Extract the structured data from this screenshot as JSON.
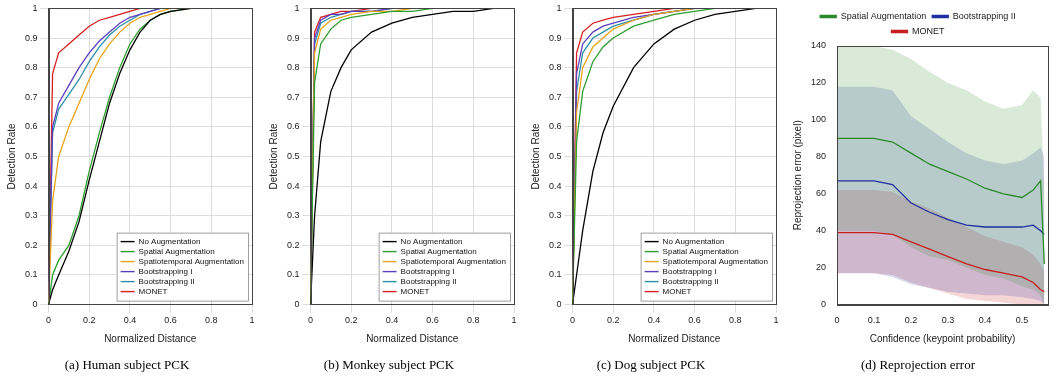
{
  "chart_data": [
    {
      "type": "line",
      "title": "(a) Human subject PCK",
      "x_label": "Normalized Distance",
      "y_label": "Detection Rate",
      "x": [
        0,
        0.02,
        0.05,
        0.1,
        0.15,
        0.2,
        0.25,
        0.3,
        0.35,
        0.4,
        0.45,
        0.5,
        0.55,
        0.6,
        0.7,
        0.8,
        0.87
      ],
      "series": [
        {
          "name": "No Augmentation",
          "color": "#000000",
          "values": [
            0,
            0.05,
            0.1,
            0.18,
            0.28,
            0.42,
            0.55,
            0.68,
            0.78,
            0.86,
            0.92,
            0.96,
            0.98,
            0.99,
            1,
            1,
            1
          ]
        },
        {
          "name": "Spatial Augmentation",
          "color": "#2e9e2e",
          "values": [
            0,
            0.1,
            0.15,
            0.2,
            0.3,
            0.45,
            0.58,
            0.7,
            0.8,
            0.88,
            0.93,
            0.96,
            0.98,
            0.99,
            1,
            1,
            1
          ]
        },
        {
          "name": "Spatiotemporal Augmentation",
          "color": "#e8a317",
          "values": [
            0,
            0.35,
            0.5,
            0.6,
            0.68,
            0.76,
            0.83,
            0.88,
            0.92,
            0.95,
            0.97,
            0.98,
            0.99,
            1,
            1,
            1,
            1
          ]
        },
        {
          "name": "Bootstrapping I",
          "color": "#5b3fbf",
          "values": [
            0,
            0.6,
            0.68,
            0.74,
            0.8,
            0.85,
            0.89,
            0.92,
            0.95,
            0.97,
            0.98,
            0.99,
            1,
            1,
            1,
            1,
            1
          ]
        },
        {
          "name": "Bootstrapping II",
          "color": "#2f8fa8",
          "values": [
            0,
            0.58,
            0.66,
            0.71,
            0.76,
            0.82,
            0.87,
            0.91,
            0.94,
            0.96,
            0.98,
            0.99,
            1,
            1,
            1,
            1,
            1
          ]
        },
        {
          "name": "MONET",
          "color": "#d62020",
          "values": [
            0,
            0.78,
            0.85,
            0.88,
            0.91,
            0.94,
            0.96,
            0.97,
            0.98,
            0.99,
            1,
            1,
            1,
            1,
            1,
            1,
            1
          ]
        }
      ],
      "xlim": [
        0,
        1
      ],
      "xticks": [
        0,
        0.2,
        0.4,
        0.6,
        0.8,
        1
      ],
      "ylim": [
        0,
        1
      ],
      "yticks": [
        0,
        0.1,
        0.2,
        0.3,
        0.4,
        0.5,
        0.6,
        0.7,
        0.8,
        0.9,
        1
      ],
      "grid": true,
      "legend": "lower right"
    },
    {
      "type": "line",
      "title": "(b) Monkey subject PCK",
      "x_label": "Normalized Distance",
      "y_label": "Detection Rate",
      "x": [
        0,
        0.02,
        0.05,
        0.1,
        0.15,
        0.2,
        0.3,
        0.4,
        0.5,
        0.6,
        0.7,
        0.8,
        0.9,
        1
      ],
      "series": [
        {
          "name": "No Augmentation",
          "color": "#000000",
          "values": [
            0,
            0.3,
            0.55,
            0.72,
            0.8,
            0.86,
            0.92,
            0.95,
            0.97,
            0.98,
            0.99,
            0.99,
            1,
            1
          ]
        },
        {
          "name": "Spatial Augmentation",
          "color": "#2e9e2e",
          "values": [
            0,
            0.75,
            0.88,
            0.93,
            0.96,
            0.97,
            0.98,
            0.99,
            0.99,
            1,
            1,
            1,
            1,
            1
          ]
        },
        {
          "name": "Spatiotemporal Augmentation",
          "color": "#e8a317",
          "values": [
            0,
            0.85,
            0.93,
            0.96,
            0.97,
            0.98,
            0.99,
            0.99,
            1,
            1,
            1,
            1,
            1,
            1
          ]
        },
        {
          "name": "Bootstrapping I",
          "color": "#5b3fbf",
          "values": [
            0,
            0.9,
            0.96,
            0.98,
            0.98,
            0.99,
            0.99,
            1,
            1,
            1,
            1,
            1,
            1,
            1
          ]
        },
        {
          "name": "Bootstrapping II",
          "color": "#2f8fa8",
          "values": [
            0,
            0.88,
            0.95,
            0.97,
            0.98,
            0.99,
            0.99,
            1,
            1,
            1,
            1,
            1,
            1,
            1
          ]
        },
        {
          "name": "MONET",
          "color": "#d62020",
          "values": [
            0,
            0.92,
            0.97,
            0.98,
            0.99,
            0.99,
            1,
            1,
            1,
            1,
            1,
            1,
            1,
            1
          ]
        }
      ],
      "xlim": [
        0,
        1
      ],
      "xticks": [
        0,
        0.2,
        0.4,
        0.6,
        0.8,
        1
      ],
      "ylim": [
        0,
        1
      ],
      "yticks": [
        0,
        0.1,
        0.2,
        0.3,
        0.4,
        0.5,
        0.6,
        0.7,
        0.8,
        0.9,
        1
      ],
      "grid": true,
      "legend": "lower right"
    },
    {
      "type": "line",
      "title": "(c) Dog subject PCK",
      "x_label": "Normalized Distance",
      "y_label": "Detection Rate",
      "x": [
        0,
        0.02,
        0.05,
        0.1,
        0.15,
        0.2,
        0.3,
        0.4,
        0.5,
        0.6,
        0.7,
        0.8,
        0.9,
        1
      ],
      "series": [
        {
          "name": "No Augmentation",
          "color": "#000000",
          "values": [
            0,
            0.1,
            0.25,
            0.45,
            0.58,
            0.67,
            0.8,
            0.88,
            0.93,
            0.96,
            0.98,
            0.99,
            1,
            1
          ]
        },
        {
          "name": "Spatial Augmentation",
          "color": "#2e9e2e",
          "values": [
            0,
            0.55,
            0.72,
            0.82,
            0.87,
            0.9,
            0.94,
            0.96,
            0.98,
            0.99,
            1,
            1,
            1,
            1
          ]
        },
        {
          "name": "Spatiotemporal Augmentation",
          "color": "#e8a317",
          "values": [
            0,
            0.65,
            0.8,
            0.87,
            0.9,
            0.93,
            0.96,
            0.98,
            0.99,
            1,
            1,
            1,
            1,
            1
          ]
        },
        {
          "name": "Bootstrapping I",
          "color": "#5b3fbf",
          "values": [
            0,
            0.78,
            0.88,
            0.92,
            0.94,
            0.95,
            0.97,
            0.98,
            0.99,
            1,
            1,
            1,
            1,
            1
          ]
        },
        {
          "name": "Bootstrapping II",
          "color": "#2f8fa8",
          "values": [
            0,
            0.72,
            0.85,
            0.9,
            0.92,
            0.94,
            0.96,
            0.98,
            0.99,
            1,
            1,
            1,
            1,
            1
          ]
        },
        {
          "name": "MONET",
          "color": "#d62020",
          "values": [
            0,
            0.85,
            0.92,
            0.95,
            0.96,
            0.97,
            0.98,
            0.99,
            1,
            1,
            1,
            1,
            1,
            1
          ]
        }
      ],
      "xlim": [
        0,
        1
      ],
      "xticks": [
        0,
        0.2,
        0.4,
        0.6,
        0.8,
        1
      ],
      "ylim": [
        0,
        1
      ],
      "yticks": [
        0,
        0.1,
        0.2,
        0.3,
        0.4,
        0.5,
        0.6,
        0.7,
        0.8,
        0.9,
        1
      ],
      "grid": true,
      "legend": "lower right"
    },
    {
      "type": "line",
      "title": "(d) Reprojection error",
      "x_label": "Confidence (keypoint probability)",
      "y_label": "Reprojection error (pixel)",
      "x": [
        0,
        0.05,
        0.1,
        0.15,
        0.2,
        0.25,
        0.3,
        0.35,
        0.4,
        0.45,
        0.5,
        0.53,
        0.55,
        0.56
      ],
      "series": [
        {
          "name": "Spatial Augmentation",
          "color": "#2a8a2a",
          "values": [
            90,
            90,
            90,
            88,
            82,
            76,
            72,
            68,
            63,
            60,
            58,
            62,
            67,
            22
          ],
          "upper": [
            140,
            140,
            140,
            138,
            133,
            126,
            120,
            116,
            110,
            106,
            108,
            116,
            112,
            60
          ],
          "lower": [
            40,
            40,
            40,
            38,
            31,
            26,
            24,
            20,
            16,
            14,
            10,
            8,
            5,
            0
          ]
        },
        {
          "name": "Bootstrapping II",
          "color": "#1f2fa0",
          "values": [
            67,
            67,
            67,
            65,
            55,
            50,
            46,
            43,
            42,
            42,
            42,
            43,
            40,
            38
          ],
          "upper": [
            118,
            118,
            118,
            116,
            102,
            95,
            88,
            82,
            78,
            76,
            78,
            82,
            85,
            80
          ],
          "lower": [
            17,
            17,
            17,
            15,
            11,
            9,
            7,
            6,
            5,
            5,
            4,
            3,
            2,
            0
          ]
        },
        {
          "name": "MONET",
          "color": "#c81e1e",
          "values": [
            39,
            39,
            39,
            38,
            34,
            30,
            26,
            22,
            19,
            17,
            15,
            12,
            8,
            7
          ],
          "upper": [
            62,
            62,
            62,
            61,
            56,
            52,
            47,
            42,
            37,
            34,
            31,
            27,
            22,
            18
          ],
          "lower": [
            17,
            17,
            17,
            16,
            12,
            9,
            6,
            3,
            2,
            1,
            0,
            0,
            0,
            0
          ]
        }
      ],
      "xlim": [
        0,
        0.57
      ],
      "xticks": [
        0,
        0.1,
        0.2,
        0.3,
        0.4,
        0.5
      ],
      "ylim": [
        0,
        140
      ],
      "yticks": [
        0,
        20,
        40,
        60,
        80,
        100,
        120,
        140
      ],
      "grid": false,
      "legend": "top"
    }
  ]
}
